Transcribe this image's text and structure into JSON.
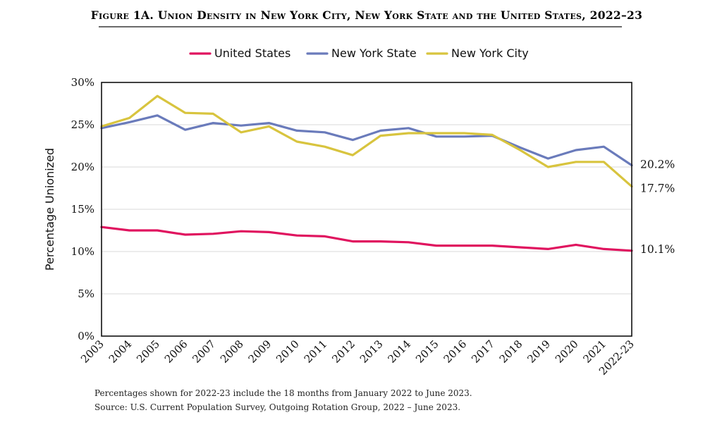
{
  "chart_data": {
    "type": "line",
    "title": "Figure 1A. Union Density in New York City, New York State and the United States, 2022–23",
    "ylabel": "Percentage Unionized",
    "xlabel": "",
    "ylim": [
      0,
      30
    ],
    "yticks": [
      0,
      5,
      10,
      15,
      20,
      25,
      30
    ],
    "ytick_labels": [
      "0%",
      "5%",
      "10%",
      "15%",
      "20%",
      "25%",
      "30%"
    ],
    "categories": [
      "2003",
      "2004",
      "2005",
      "2006",
      "2007",
      "2008",
      "2009",
      "2010",
      "2011",
      "2012",
      "2013",
      "2014",
      "2015",
      "2016",
      "2017",
      "2018",
      "2019",
      "2020",
      "2021",
      "2022-23"
    ],
    "grid": "horizontal",
    "legend_position": "top",
    "series": [
      {
        "name": "United States",
        "color": "#e0145f",
        "values": [
          12.9,
          12.5,
          12.5,
          12.0,
          12.1,
          12.4,
          12.3,
          11.9,
          11.8,
          11.2,
          11.2,
          11.1,
          10.7,
          10.7,
          10.7,
          10.5,
          10.3,
          10.8,
          10.3,
          10.1
        ],
        "end_label": "10.1%"
      },
      {
        "name": "New York State",
        "color": "#6a7bbb",
        "values": [
          24.6,
          25.3,
          26.1,
          24.4,
          25.2,
          24.9,
          25.2,
          24.3,
          24.1,
          23.2,
          24.3,
          24.6,
          23.6,
          23.6,
          23.7,
          22.3,
          21.0,
          22.0,
          22.4,
          20.2
        ],
        "end_label": "20.2%"
      },
      {
        "name": "New York City",
        "color": "#d8c43e",
        "values": [
          24.8,
          25.8,
          28.4,
          26.4,
          26.3,
          24.1,
          24.8,
          23.0,
          22.4,
          21.4,
          23.7,
          24.0,
          24.0,
          24.0,
          23.8,
          22.0,
          20.0,
          20.6,
          20.6,
          17.7
        ],
        "end_label": "17.7%"
      }
    ],
    "notes": [
      "Percentages shown for 2022-23 include the 18 months from January 2022 to June 2023.",
      "Source: U.S. Current Population Survey, Outgoing Rotation Group, 2022 – June 2023."
    ]
  }
}
